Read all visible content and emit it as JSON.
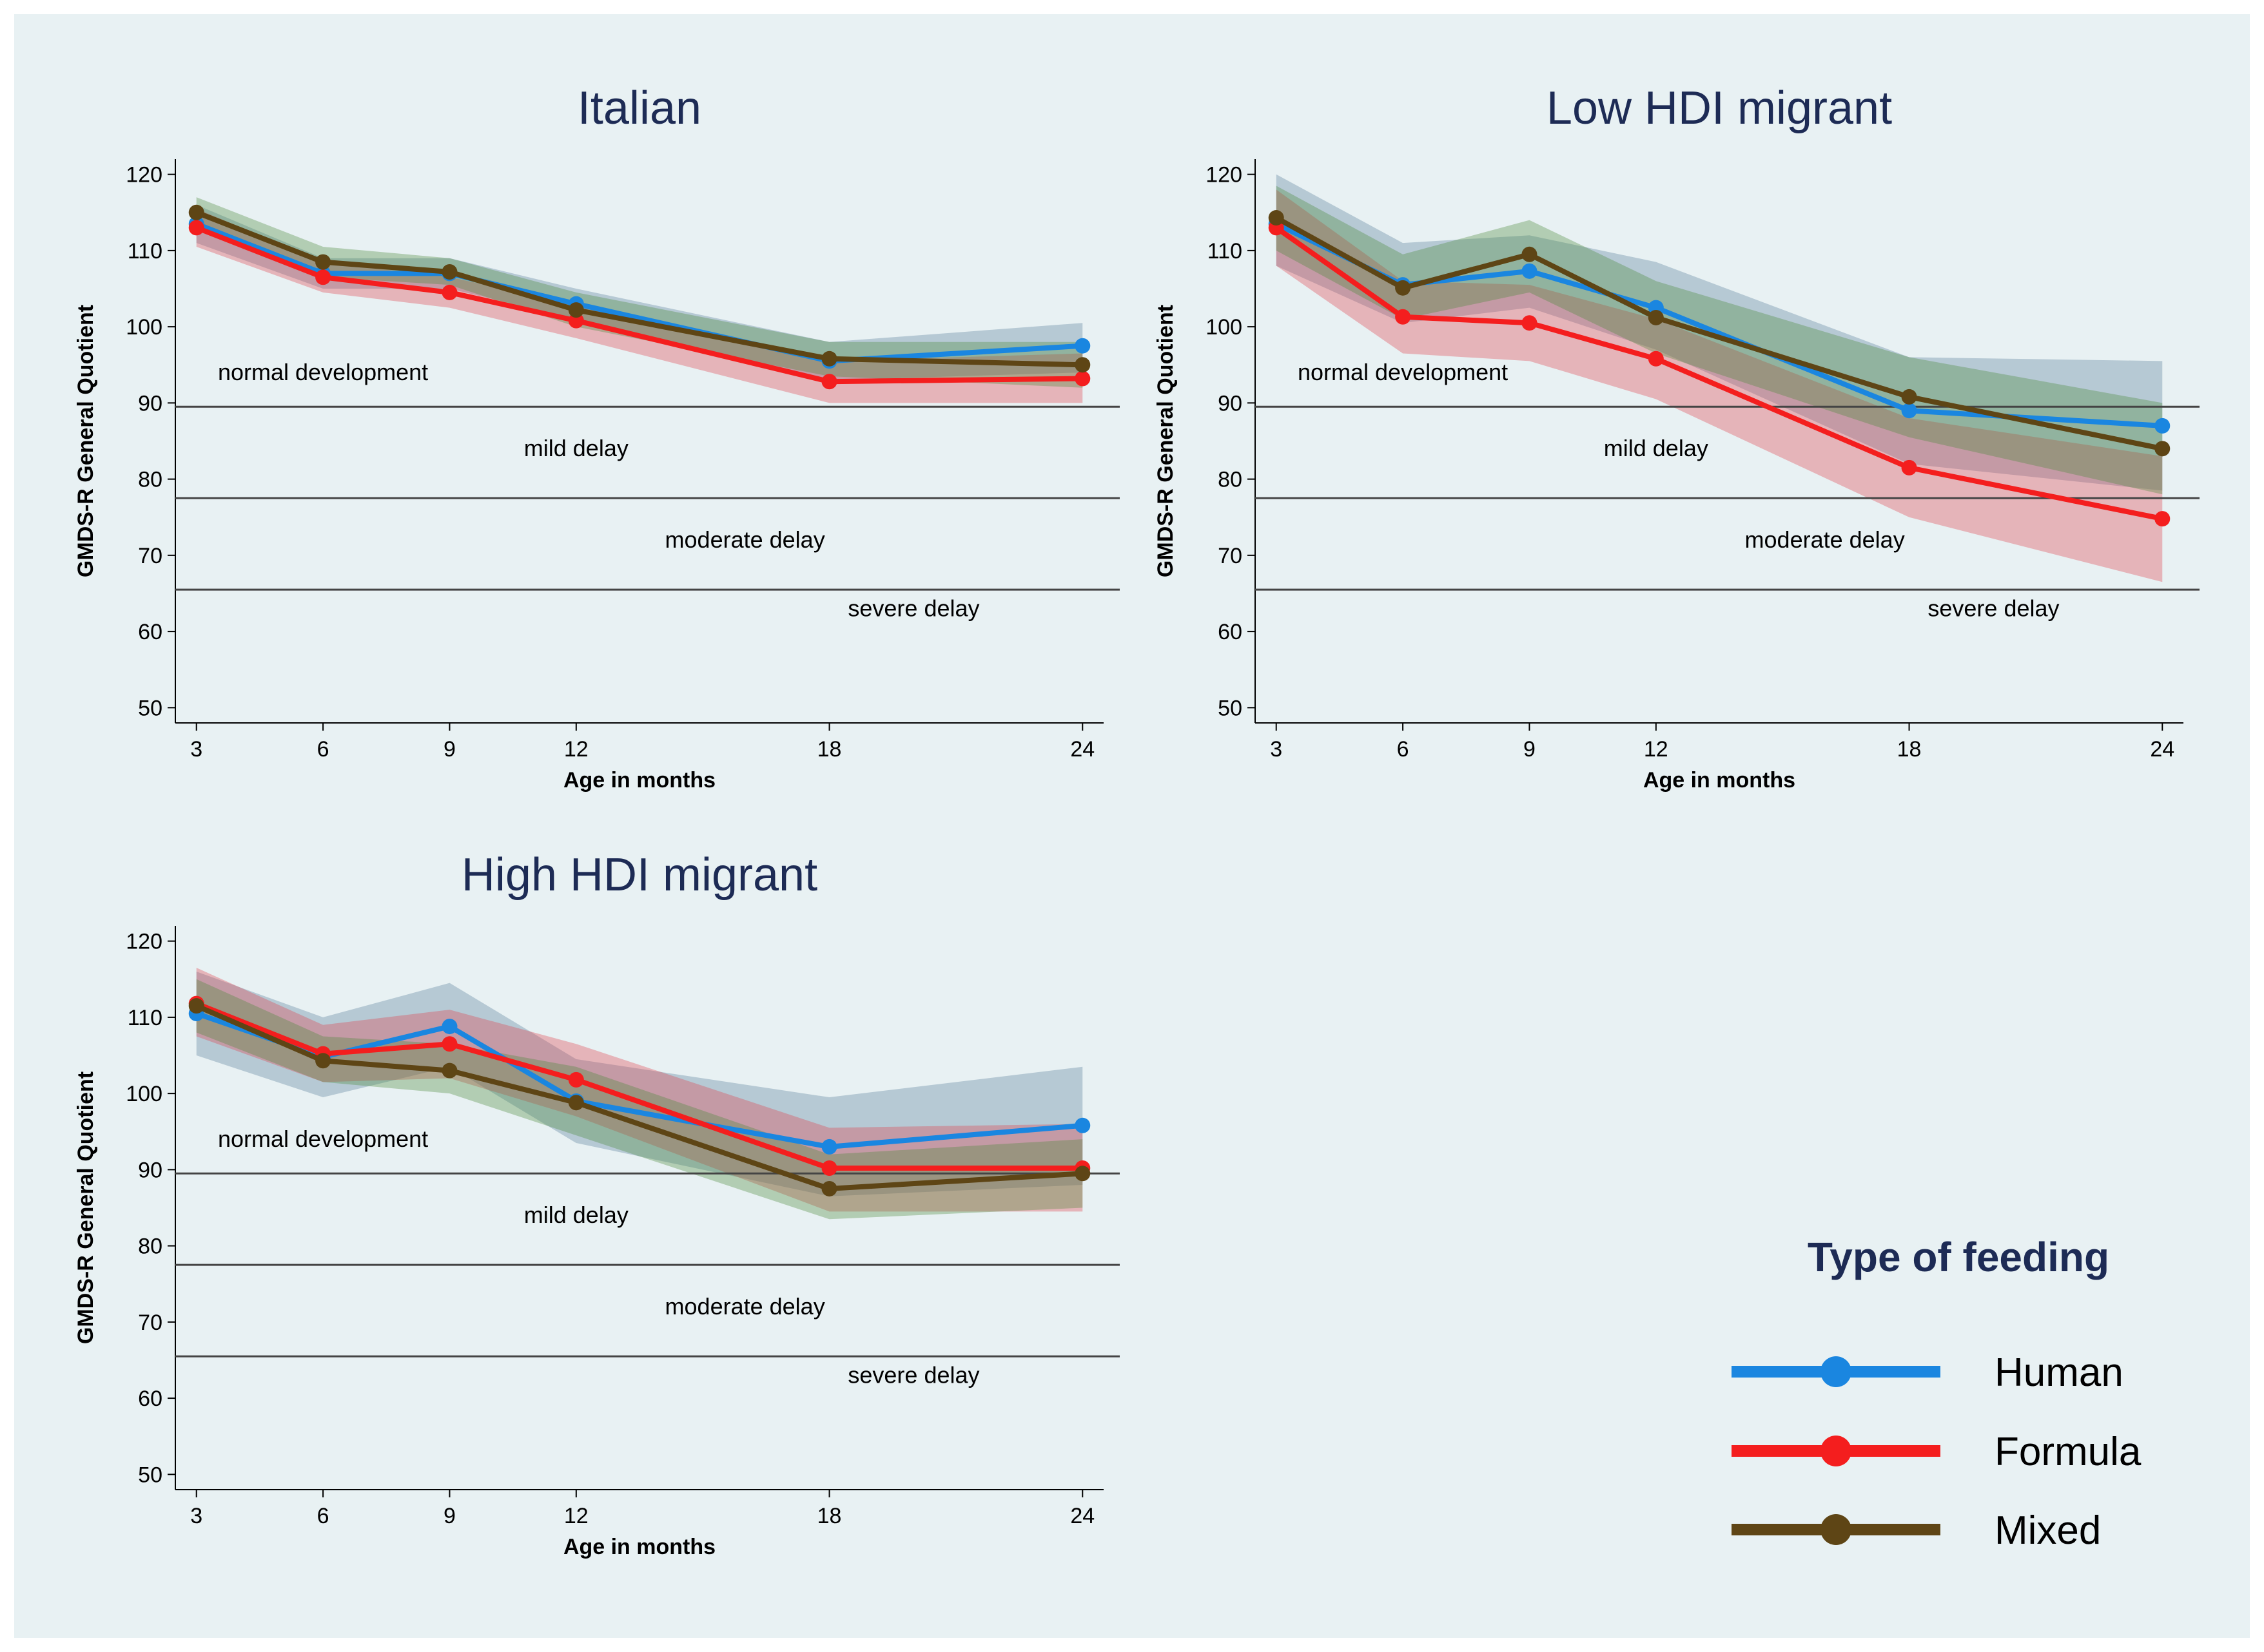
{
  "chart_data": [
    {
      "type": "line",
      "title": "Italian",
      "xlabel": "Age in months",
      "ylabel": "GMDS-R General Quotient",
      "x": [
        3,
        6,
        9,
        12,
        18,
        24
      ],
      "xlim": [
        2.5,
        24.5
      ],
      "ylim": [
        48,
        122
      ],
      "yticks": [
        50,
        60,
        70,
        80,
        90,
        100,
        110,
        120
      ],
      "thresholds": [
        89.5,
        77.5,
        65.5
      ],
      "zones": [
        {
          "label": "normal development",
          "x": 6.0,
          "y": 93
        },
        {
          "label": "mild delay",
          "x": 12.0,
          "y": 83
        },
        {
          "label": "moderate delay",
          "x": 16.0,
          "y": 71
        },
        {
          "label": "severe delay",
          "x": 20.0,
          "y": 62
        }
      ],
      "series": [
        {
          "name": "Human",
          "values": [
            113.5,
            107,
            107,
            103,
            95.5,
            97.5
          ],
          "ci_low": [
            111,
            105,
            105,
            101,
            93,
            94
          ],
          "ci_high": [
            116,
            109,
            109,
            105,
            98,
            100.5
          ]
        },
        {
          "name": "Formula",
          "values": [
            113,
            106.5,
            104.5,
            100.8,
            92.8,
            93.2
          ],
          "ci_low": [
            110.5,
            104.5,
            102.5,
            98.5,
            90,
            90
          ],
          "ci_high": [
            115.5,
            108.5,
            106.5,
            103,
            95.5,
            96.5
          ]
        },
        {
          "name": "Mixed",
          "values": [
            115,
            108.5,
            107.2,
            102.2,
            95.8,
            95
          ],
          "ci_low": [
            113,
            106.5,
            105.5,
            100,
            93.5,
            92
          ],
          "ci_high": [
            117,
            110.5,
            109,
            104.5,
            98,
            98
          ]
        }
      ]
    },
    {
      "type": "line",
      "title": "Low HDI migrant",
      "xlabel": "Age in months",
      "ylabel": "GMDS-R General Quotient",
      "x": [
        3,
        6,
        9,
        12,
        18,
        24
      ],
      "xlim": [
        2.5,
        24.5
      ],
      "ylim": [
        48,
        122
      ],
      "yticks": [
        50,
        60,
        70,
        80,
        90,
        100,
        110,
        120
      ],
      "thresholds": [
        89.5,
        77.5,
        65.5
      ],
      "zones": [
        {
          "label": "normal development",
          "x": 6.0,
          "y": 93
        },
        {
          "label": "mild delay",
          "x": 12.0,
          "y": 83
        },
        {
          "label": "moderate delay",
          "x": 16.0,
          "y": 71
        },
        {
          "label": "severe delay",
          "x": 20.0,
          "y": 62
        }
      ],
      "series": [
        {
          "name": "Human",
          "values": [
            113.5,
            105.5,
            107.3,
            102.5,
            89,
            87
          ],
          "ci_low": [
            108,
            100.5,
            102.5,
            97,
            82,
            78.5
          ],
          "ci_high": [
            120,
            111,
            112,
            108.5,
            96,
            95.5
          ]
        },
        {
          "name": "Formula",
          "values": [
            113,
            101.3,
            100.5,
            95.8,
            81.5,
            74.8
          ],
          "ci_low": [
            108,
            96.5,
            95.5,
            90.5,
            75,
            66.5
          ],
          "ci_high": [
            118,
            106,
            105.5,
            101,
            88,
            83
          ]
        },
        {
          "name": "Mixed",
          "values": [
            114.3,
            105.1,
            109.5,
            101.2,
            90.8,
            84
          ],
          "ci_low": [
            110,
            101,
            104.5,
            96.5,
            85.5,
            78
          ],
          "ci_high": [
            118.5,
            109.5,
            114,
            106,
            96,
            90
          ]
        }
      ]
    },
    {
      "type": "line",
      "title": "High HDI migrant",
      "xlabel": "Age in months",
      "ylabel": "GMDS-R General Quotient",
      "x": [
        3,
        6,
        9,
        12,
        18,
        24
      ],
      "xlim": [
        2.5,
        24.5
      ],
      "ylim": [
        48,
        122
      ],
      "yticks": [
        50,
        60,
        70,
        80,
        90,
        100,
        110,
        120
      ],
      "thresholds": [
        89.5,
        77.5,
        65.5
      ],
      "zones": [
        {
          "label": "normal development",
          "x": 6.0,
          "y": 93
        },
        {
          "label": "mild delay",
          "x": 12.0,
          "y": 83
        },
        {
          "label": "moderate delay",
          "x": 16.0,
          "y": 71
        },
        {
          "label": "severe delay",
          "x": 20.0,
          "y": 62
        }
      ],
      "series": [
        {
          "name": "Human",
          "values": [
            110.5,
            104.8,
            108.8,
            99,
            93,
            95.8
          ],
          "ci_low": [
            105,
            99.5,
            103.5,
            93.5,
            86.5,
            88
          ],
          "ci_high": [
            116,
            110,
            114.5,
            104.5,
            99.5,
            103.5
          ]
        },
        {
          "name": "Formula",
          "values": [
            111.8,
            105.2,
            106.5,
            101.8,
            90.2,
            90.2
          ],
          "ci_low": [
            107.5,
            101.5,
            102,
            97,
            84.5,
            84.5
          ],
          "ci_high": [
            116.5,
            109,
            111,
            106.5,
            95.5,
            96
          ]
        },
        {
          "name": "Mixed",
          "values": [
            111.5,
            104.3,
            103,
            98.8,
            87.5,
            89.5
          ],
          "ci_low": [
            108,
            101.5,
            100,
            94.5,
            83.5,
            85
          ],
          "ci_high": [
            115,
            107.5,
            106.5,
            103.5,
            92,
            94
          ]
        }
      ]
    }
  ],
  "legend": {
    "title": "Type of feeding",
    "items": [
      "Human",
      "Formula",
      "Mixed"
    ]
  },
  "colors": {
    "Human": "#1a86e0",
    "Formula": "#f41e1e",
    "Mixed": "#5e4515",
    "band_Human": "#5a7f9c",
    "band_Formula": "#e0424c",
    "band_Mixed": "#4c8a3c"
  }
}
